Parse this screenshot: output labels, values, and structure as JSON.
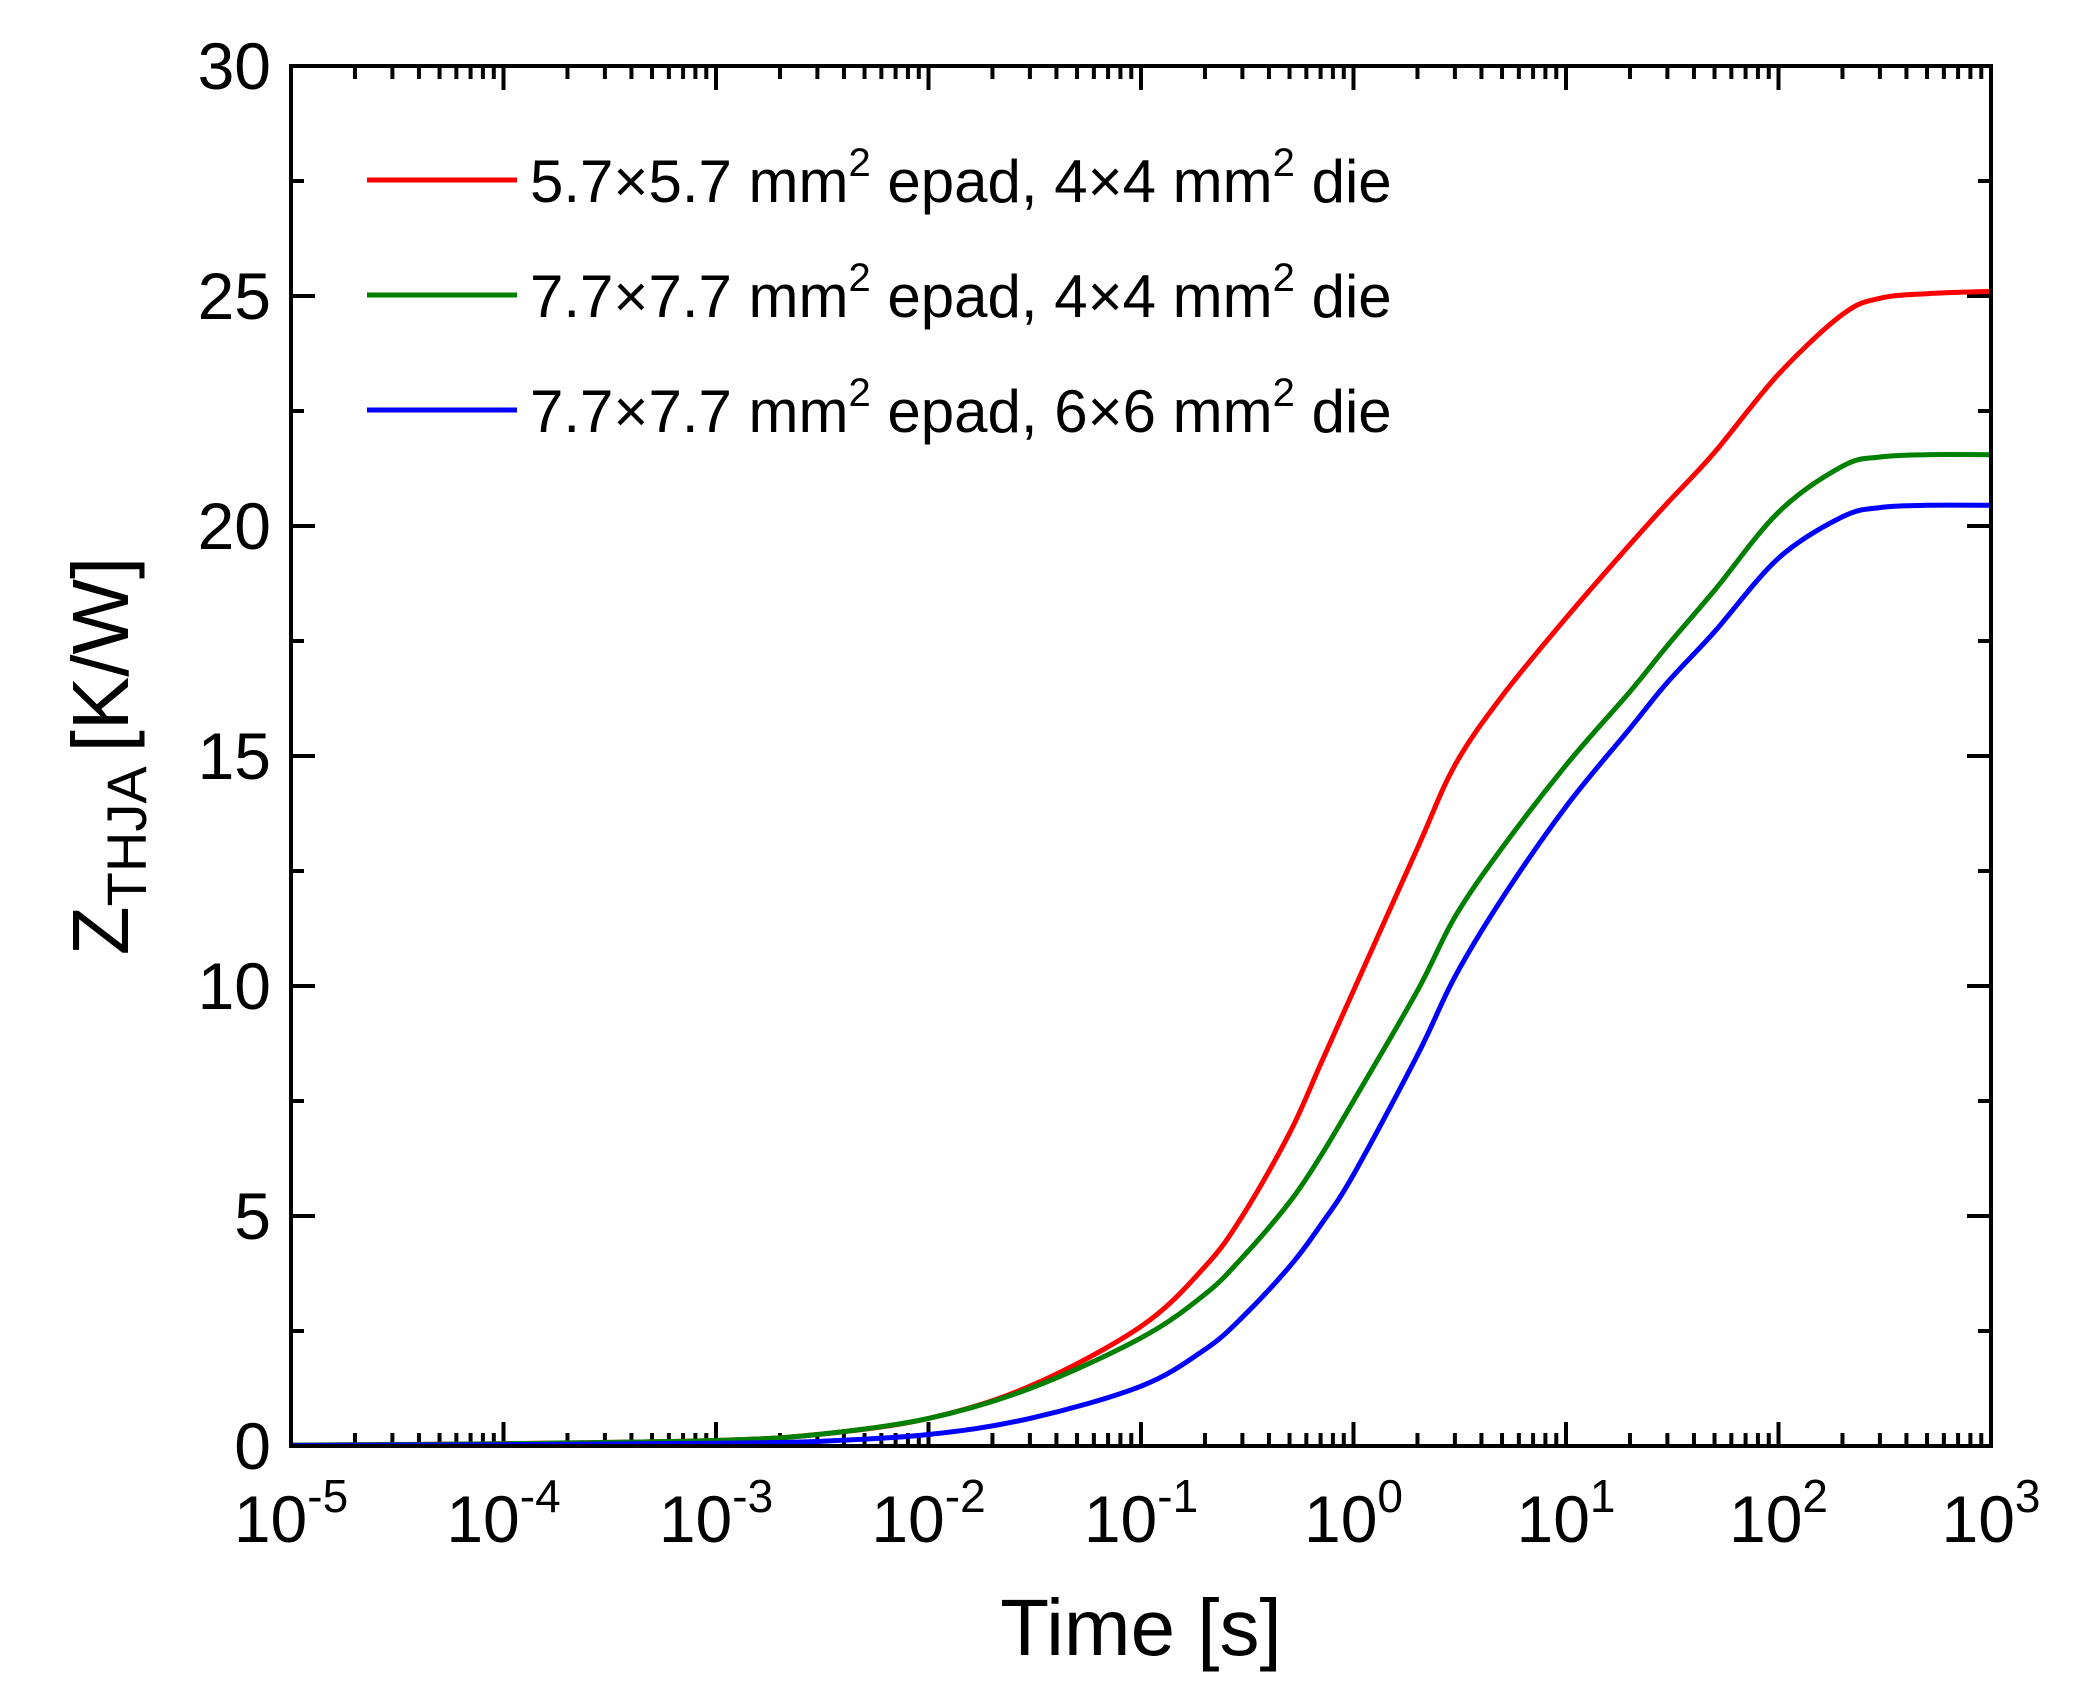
{
  "chart_data": {
    "type": "line",
    "xscale": "log",
    "xlim": [
      1e-05,
      1000
    ],
    "ylim": [
      0,
      30
    ],
    "xlabel": "Time [s]",
    "ylabel_main": "Z",
    "ylabel_sub": "THJA",
    "ylabel_unit": "[K/W]",
    "x_ticks": [
      {
        "base": "10",
        "exp": "-5",
        "value": 1e-05
      },
      {
        "base": "10",
        "exp": "-4",
        "value": 0.0001
      },
      {
        "base": "10",
        "exp": "-3",
        "value": 0.001
      },
      {
        "base": "10",
        "exp": "-2",
        "value": 0.01
      },
      {
        "base": "10",
        "exp": "-1",
        "value": 0.1
      },
      {
        "base": "10",
        "exp": "0",
        "value": 1
      },
      {
        "base": "10",
        "exp": "1",
        "value": 10
      },
      {
        "base": "10",
        "exp": "2",
        "value": 100
      },
      {
        "base": "10",
        "exp": "3",
        "value": 1000
      }
    ],
    "y_ticks": [
      {
        "label": "0",
        "value": 0
      },
      {
        "label": "5",
        "value": 5
      },
      {
        "label": "10",
        "value": 10
      },
      {
        "label": "15",
        "value": 15
      },
      {
        "label": "20",
        "value": 20
      },
      {
        "label": "25",
        "value": 25
      },
      {
        "label": "30",
        "value": 30
      }
    ],
    "legend_position": "top-left",
    "series": [
      {
        "name": "5.7×5.7 mm2 epad, 4×4 mm2 die",
        "legend_parts": {
          "a": "5.7×5.7 mm",
          "sup1": "2",
          "b": " epad, 4×4 mm",
          "sup2": "2",
          "c": " die"
        },
        "color": "#ff0000",
        "x": [
          1e-05,
          0.0001,
          0.001,
          0.003,
          0.01,
          0.03,
          0.1,
          0.2,
          0.3,
          0.5,
          0.7,
          1,
          2,
          3,
          5,
          10,
          20,
          30,
          50,
          100,
          200,
          300,
          500,
          1000
        ],
        "y": [
          0.02,
          0.05,
          0.12,
          0.25,
          0.6,
          1.3,
          2.6,
          3.9,
          5.0,
          6.8,
          8.3,
          9.9,
          13.0,
          14.8,
          16.3,
          18.0,
          19.6,
          20.5,
          21.6,
          23.3,
          24.6,
          24.95,
          25.05,
          25.1
        ]
      },
      {
        "name": "7.7×7.7 mm2 epad, 4×4 mm2 die",
        "legend_parts": {
          "a": "7.7×7.7 mm",
          "sup1": "2",
          "b": " epad, 4×4 mm",
          "sup2": "2",
          "c": " die"
        },
        "color": "#008000",
        "x": [
          1e-05,
          0.0001,
          0.001,
          0.003,
          0.01,
          0.03,
          0.1,
          0.2,
          0.3,
          0.5,
          0.7,
          1,
          2,
          3,
          5,
          10,
          20,
          30,
          50,
          100,
          200,
          300,
          500,
          1000
        ],
        "y": [
          0.02,
          0.05,
          0.12,
          0.25,
          0.6,
          1.25,
          2.35,
          3.3,
          4.1,
          5.3,
          6.3,
          7.5,
          9.9,
          11.5,
          13.0,
          14.8,
          16.4,
          17.4,
          18.6,
          20.3,
          21.3,
          21.5,
          21.55,
          21.55
        ]
      },
      {
        "name": "7.7×7.7 mm2 epad, 6×6 mm2 die",
        "legend_parts": {
          "a": "7.7×7.7 mm",
          "sup1": "2",
          "b": " epad, 6×6 mm",
          "sup2": "2",
          "c": " die"
        },
        "color": "#0000ff",
        "x": [
          1e-05,
          0.0001,
          0.001,
          0.003,
          0.01,
          0.03,
          0.1,
          0.2,
          0.3,
          0.5,
          0.7,
          1,
          2,
          3,
          5,
          10,
          20,
          30,
          50,
          100,
          200,
          300,
          500,
          1000
        ],
        "y": [
          0.01,
          0.03,
          0.06,
          0.1,
          0.25,
          0.6,
          1.3,
          2.1,
          2.8,
          3.9,
          4.8,
          5.9,
          8.5,
          10.2,
          11.9,
          13.9,
          15.6,
          16.6,
          17.7,
          19.3,
          20.2,
          20.4,
          20.45,
          20.45
        ]
      }
    ]
  }
}
